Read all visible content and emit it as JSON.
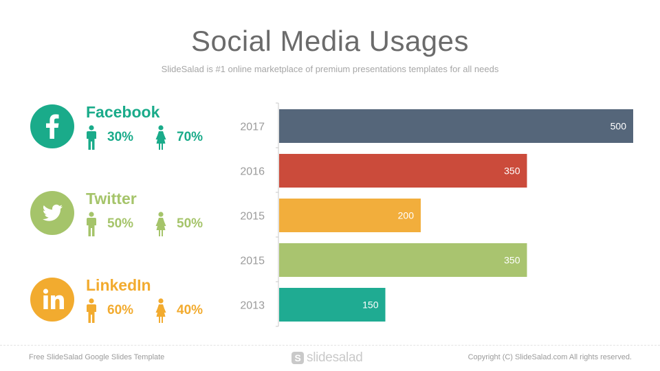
{
  "title": "Social Media Usages",
  "subtitle": "SlideSalad is #1 online marketplace of premium presentations templates for all needs",
  "social": [
    {
      "name": "Facebook",
      "icon": "facebook-icon",
      "color": "#1aab8a",
      "male": "30%",
      "female": "70%"
    },
    {
      "name": "Twitter",
      "icon": "twitter-icon",
      "color": "#a5c46a",
      "male": "50%",
      "female": "50%"
    },
    {
      "name": "LinkedIn",
      "icon": "linkedin-icon",
      "color": "#f2ab2f",
      "male": "60%",
      "female": "40%"
    }
  ],
  "chart_data": {
    "type": "bar",
    "orientation": "horizontal",
    "categories": [
      "2017",
      "2016",
      "2015",
      "2015",
      "2013"
    ],
    "values": [
      500,
      350,
      200,
      350,
      150
    ],
    "colors": [
      "#55667a",
      "#cb4b3b",
      "#f2ae3c",
      "#a9c46f",
      "#1fab92"
    ],
    "xlim": [
      0,
      500
    ],
    "data_labels": true,
    "grid": false
  },
  "footer": {
    "left": "Free SlideSalad Google Slides Template",
    "logo": "slidesalad",
    "logo_mark": "S",
    "right": "Copyright (C) SlideSalad.com All rights reserved."
  }
}
